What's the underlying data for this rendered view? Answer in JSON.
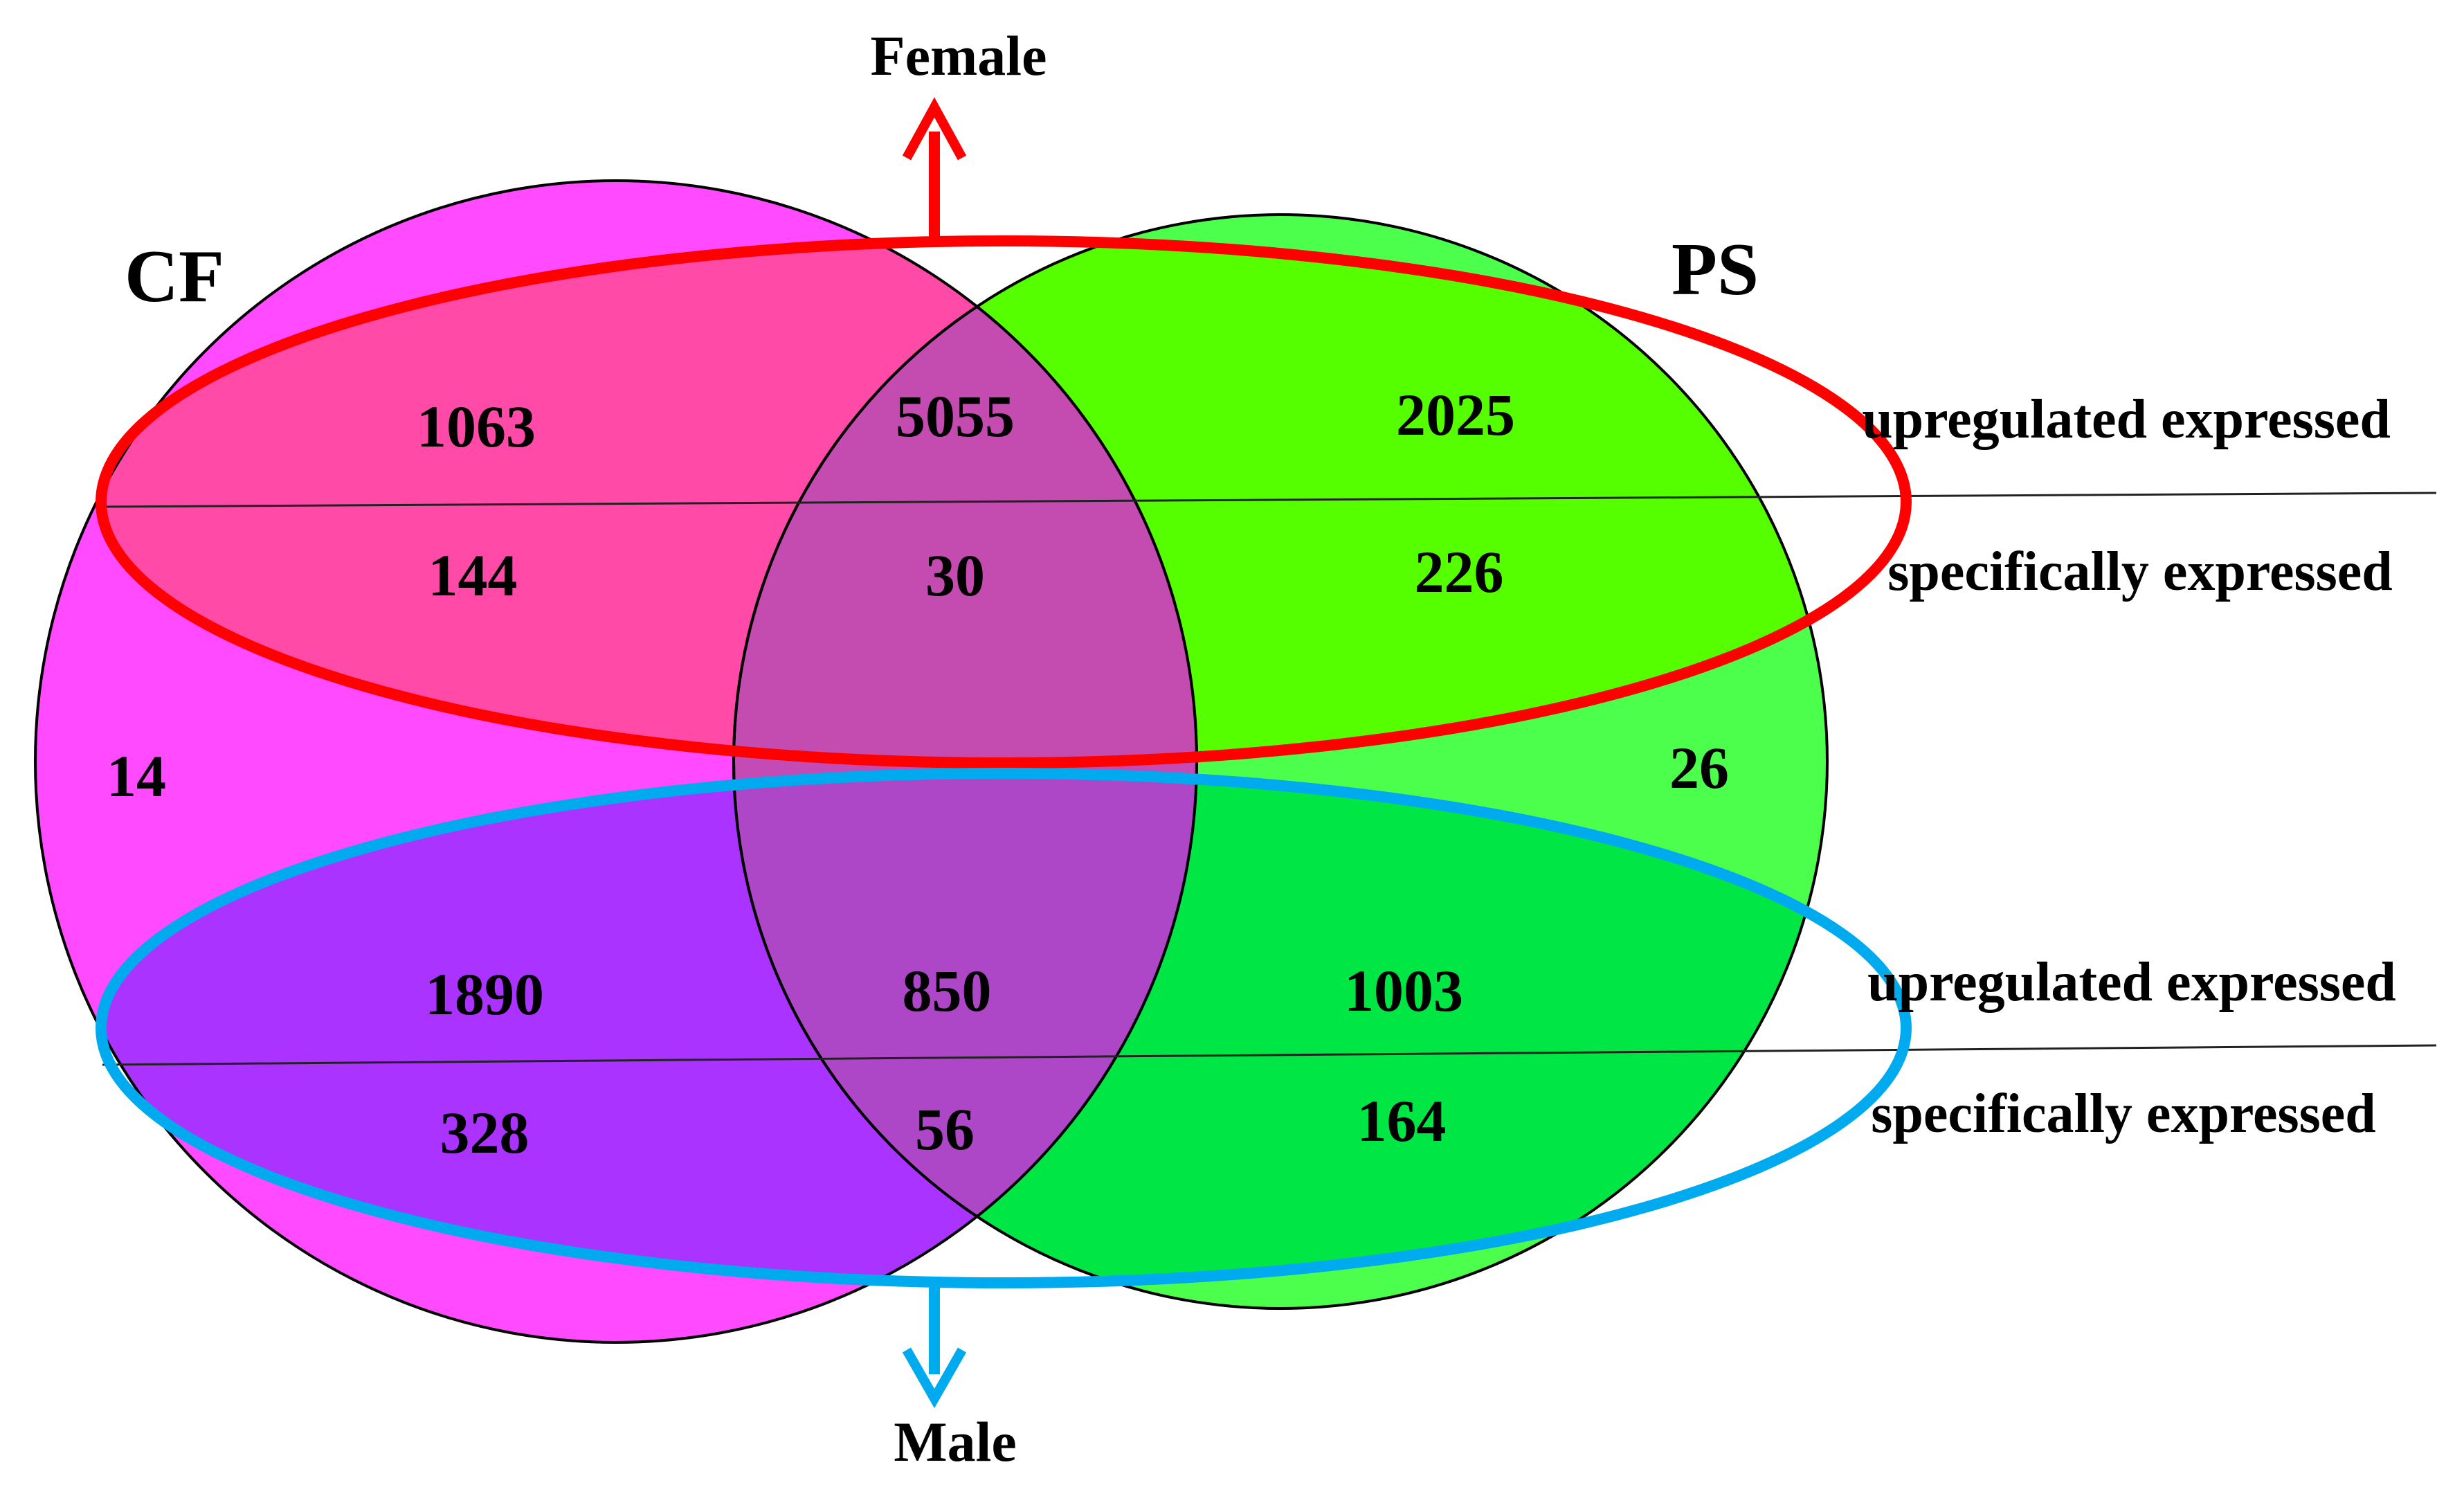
{
  "sets": {
    "left": {
      "label": "CF",
      "color": "#ff4aff"
    },
    "right": {
      "label": "PS",
      "color": "#4dff4d"
    },
    "overlap_color": "#c44bb5"
  },
  "groups": {
    "top": {
      "label": "Female",
      "color": "#ff0000"
    },
    "bottom": {
      "label": "Male",
      "color": "#00aaee"
    }
  },
  "row_labels": {
    "female_upregulated": "upregulated expressed",
    "female_specific": "specifically expressed",
    "male_upregulated": "upregulated expressed",
    "male_specific": "specifically expressed"
  },
  "counts": {
    "female_upregulated": {
      "cf_only": "1063",
      "shared": "5055",
      "ps_only": "2025"
    },
    "female_specific": {
      "cf_only": "144",
      "shared": "30",
      "ps_only": "226"
    },
    "male_upregulated": {
      "cf_only": "1890",
      "shared": "850",
      "ps_only": "1003"
    },
    "male_specific": {
      "cf_only": "328",
      "shared": "56",
      "ps_only": "164"
    },
    "cf_other": "14",
    "ps_other": "26"
  }
}
